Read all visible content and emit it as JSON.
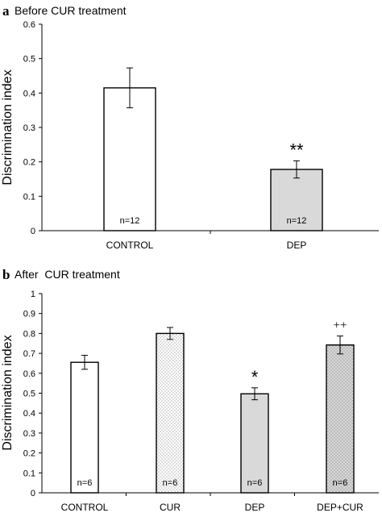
{
  "chart_data": [
    {
      "type": "bar",
      "panel": "a",
      "title": "Before CUR treatment",
      "ylabel": "Discrimination index",
      "xlabel": "",
      "ylim": [
        0,
        0.6
      ],
      "yticks": [
        "0",
        "0.1",
        "0.2",
        "0.3",
        "0.4",
        "0.5",
        "0.6"
      ],
      "categories": [
        "CONTROL",
        "DEP"
      ],
      "values": [
        0.415,
        0.178
      ],
      "errors": [
        0.058,
        0.025
      ],
      "fills": [
        "white",
        "gray"
      ],
      "n_labels": [
        "n=12",
        "n=12"
      ],
      "significance": [
        "",
        "**"
      ],
      "grid": false
    },
    {
      "type": "bar",
      "panel": "b",
      "title": "After  CUR treatment",
      "ylabel": "Discrimination index",
      "xlabel": "",
      "ylim": [
        0,
        1
      ],
      "yticks": [
        "0",
        "0.1",
        "0.2",
        "0.3",
        "0.4",
        "0.5",
        "0.6",
        "0.7",
        "0.8",
        "0.9",
        "1"
      ],
      "categories": [
        "CONTROL",
        "CUR",
        "DEP",
        "DEP+CUR"
      ],
      "values": [
        0.655,
        0.8,
        0.497,
        0.742
      ],
      "errors": [
        0.035,
        0.03,
        0.03,
        0.045
      ],
      "fills": [
        "white",
        "dotted",
        "gray",
        "dotted-gray"
      ],
      "n_labels": [
        "n=6",
        "n=6",
        "n=6",
        "n=6"
      ],
      "significance": [
        "",
        "",
        "*",
        "++"
      ],
      "grid": false
    }
  ]
}
